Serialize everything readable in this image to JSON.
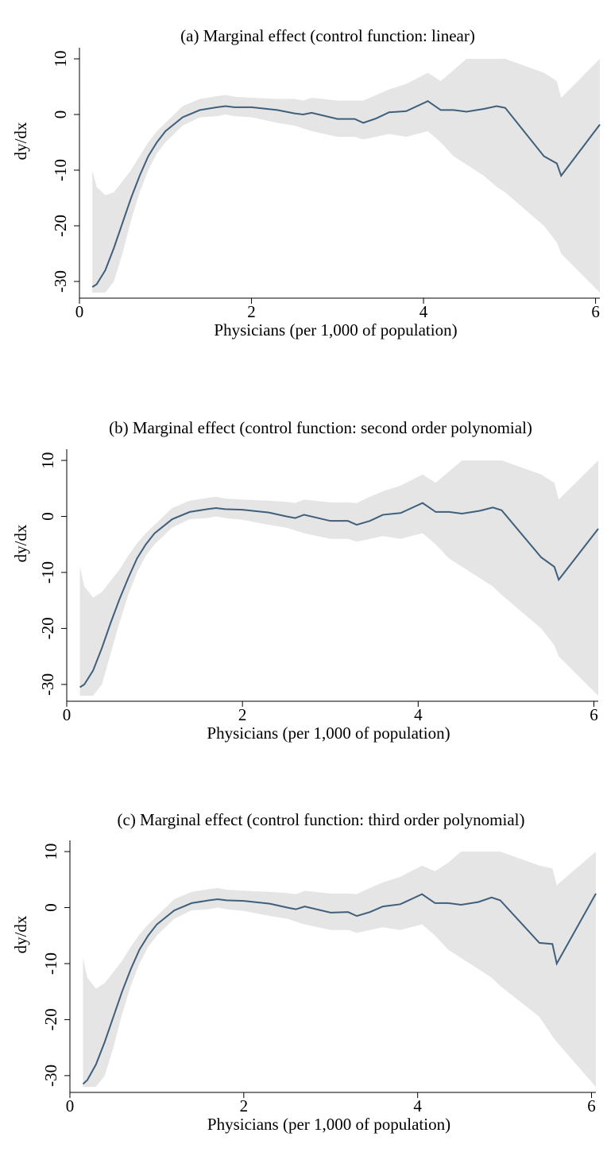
{
  "chart_data": [
    {
      "type": "line",
      "title": "(a) Marginal effect (control function: linear)",
      "xlabel": "Physicians (per 1,000 of population)",
      "ylabel": "dy/dx",
      "xlim": [
        0,
        6.05
      ],
      "xticks": [
        0,
        2,
        4,
        6
      ],
      "ylim": [
        -33,
        12
      ],
      "yticks": [
        -30,
        -20,
        -10,
        0,
        10
      ],
      "band_color": "#e5e5e5",
      "color": "#3f5f7a",
      "x": [
        0.15,
        0.2,
        0.3,
        0.4,
        0.5,
        0.6,
        0.7,
        0.8,
        0.9,
        1.0,
        1.2,
        1.4,
        1.6,
        1.7,
        1.8,
        2.0,
        2.3,
        2.5,
        2.6,
        2.7,
        3.0,
        3.2,
        3.3,
        3.45,
        3.6,
        3.8,
        4.05,
        4.2,
        4.35,
        4.5,
        4.7,
        4.85,
        4.95,
        5.4,
        5.55,
        5.6,
        6.05
      ],
      "values": [
        -31,
        -30.5,
        -28,
        -24,
        -19.5,
        -15,
        -11,
        -7.5,
        -5,
        -3,
        -0.5,
        0.8,
        1.3,
        1.5,
        1.3,
        1.3,
        0.8,
        0.2,
        0,
        0.3,
        -0.8,
        -0.8,
        -1.5,
        -0.7,
        0.4,
        0.6,
        2.4,
        0.8,
        0.8,
        0.5,
        1,
        1.5,
        1.2,
        -7.5,
        -8.8,
        -11,
        -1.8
      ],
      "lower": [
        -32,
        -32,
        -32,
        -30,
        -25,
        -19,
        -14,
        -10,
        -7,
        -5,
        -2,
        -0.5,
        -0.3,
        0,
        -0.3,
        -0.5,
        -1.5,
        -2,
        -2.5,
        -3,
        -4,
        -4,
        -4.5,
        -4,
        -3.5,
        -4,
        -3,
        -5,
        -7.5,
        -9,
        -11,
        -13,
        -14,
        -20,
        -23,
        -25,
        -32
      ],
      "upper": [
        -10,
        -13,
        -14.5,
        -14,
        -12,
        -10,
        -7.5,
        -5,
        -3,
        -1.5,
        1.5,
        2.8,
        3.3,
        3.5,
        3.2,
        3,
        2.8,
        2.8,
        2.5,
        3,
        2.5,
        2.5,
        2.5,
        3.5,
        4.5,
        5.5,
        7.5,
        6,
        8,
        10,
        10,
        10,
        10,
        7.5,
        6,
        3,
        10
      ]
    },
    {
      "type": "line",
      "title": "(b) Marginal effect (control function: second order polynomial)",
      "xlabel": "Physicians (per 1,000 of population)",
      "ylabel": "dy/dx",
      "xlim": [
        0,
        6.05
      ],
      "xticks": [
        0,
        2,
        4,
        6
      ],
      "ylim": [
        -33,
        12
      ],
      "yticks": [
        -30,
        -20,
        -10,
        0,
        10
      ],
      "band_color": "#e5e5e5",
      "color": "#3f5f7a",
      "x": [
        0.15,
        0.2,
        0.3,
        0.4,
        0.5,
        0.6,
        0.7,
        0.8,
        0.9,
        1.0,
        1.2,
        1.4,
        1.6,
        1.7,
        1.8,
        2.0,
        2.3,
        2.5,
        2.6,
        2.7,
        3.0,
        3.2,
        3.3,
        3.45,
        3.6,
        3.8,
        4.05,
        4.2,
        4.35,
        4.5,
        4.7,
        4.85,
        4.95,
        5.4,
        5.55,
        5.6,
        6.05
      ],
      "values": [
        -30.5,
        -30,
        -27.5,
        -23.5,
        -19,
        -14.8,
        -11,
        -7.5,
        -5,
        -3,
        -0.5,
        0.8,
        1.3,
        1.5,
        1.3,
        1.2,
        0.7,
        0,
        -0.3,
        0.3,
        -0.8,
        -0.8,
        -1.5,
        -0.8,
        0.3,
        0.6,
        2.4,
        0.8,
        0.8,
        0.5,
        1,
        1.6,
        1.1,
        -7.3,
        -9,
        -11.3,
        -2.2
      ],
      "lower": [
        -32,
        -32,
        -32,
        -30,
        -24.5,
        -19,
        -14,
        -10,
        -7,
        -5,
        -2,
        -0.5,
        -0.3,
        0,
        -0.3,
        -0.6,
        -1.5,
        -2,
        -2.5,
        -3,
        -4,
        -4,
        -4.5,
        -4,
        -3.5,
        -4,
        -3,
        -5,
        -7.5,
        -9,
        -11,
        -12.5,
        -14,
        -20,
        -23,
        -25,
        -32
      ],
      "upper": [
        -9,
        -12.5,
        -14.5,
        -13.5,
        -11.5,
        -9.5,
        -7,
        -4.8,
        -3,
        -1.5,
        1.5,
        2.8,
        3.3,
        3.5,
        3.2,
        3,
        2.8,
        2.6,
        2.4,
        3,
        2.5,
        2.5,
        2.4,
        3.5,
        4.5,
        5.5,
        7.5,
        6,
        8,
        10,
        10,
        10,
        10,
        7.5,
        6,
        3,
        10
      ]
    },
    {
      "type": "line",
      "title": "(c) Marginal effect (control function: third order polynomial)",
      "xlabel": "Physicians (per 1,000 of population)",
      "ylabel": "dy/dx",
      "xlim": [
        0,
        6.05
      ],
      "xticks": [
        0,
        2,
        4,
        6
      ],
      "ylim": [
        -33,
        12
      ],
      "yticks": [
        -30,
        -20,
        -10,
        0,
        10
      ],
      "band_color": "#e5e5e5",
      "color": "#3f5f7a",
      "x": [
        0.15,
        0.2,
        0.3,
        0.4,
        0.5,
        0.6,
        0.7,
        0.8,
        0.9,
        1.0,
        1.2,
        1.4,
        1.6,
        1.7,
        1.8,
        2.0,
        2.3,
        2.5,
        2.6,
        2.7,
        3.0,
        3.2,
        3.3,
        3.45,
        3.6,
        3.8,
        4.05,
        4.2,
        4.35,
        4.5,
        4.7,
        4.85,
        4.95,
        5.4,
        5.55,
        5.6,
        6.05
      ],
      "values": [
        -31.5,
        -30.8,
        -28,
        -24,
        -19.5,
        -15,
        -11,
        -7.5,
        -5,
        -3,
        -0.5,
        0.8,
        1.3,
        1.5,
        1.3,
        1.2,
        0.7,
        0,
        -0.3,
        0.2,
        -0.9,
        -0.8,
        -1.5,
        -0.8,
        0.2,
        0.6,
        2.4,
        0.8,
        0.8,
        0.5,
        1,
        1.8,
        1.3,
        -6.3,
        -6.5,
        -10,
        2.5
      ],
      "lower": [
        -32,
        -32,
        -32,
        -30,
        -25,
        -19,
        -14,
        -10,
        -7,
        -5,
        -2,
        -0.5,
        -0.3,
        0,
        -0.3,
        -0.6,
        -1.5,
        -2,
        -2.5,
        -3,
        -4,
        -4,
        -4.5,
        -4,
        -3.5,
        -4,
        -3,
        -5,
        -7.5,
        -9,
        -11,
        -12.5,
        -14,
        -19.5,
        -23,
        -24,
        -32
      ],
      "upper": [
        -9,
        -12.5,
        -14.5,
        -13.5,
        -11.5,
        -9.5,
        -7,
        -4.8,
        -3,
        -1.5,
        1.5,
        2.8,
        3.3,
        3.5,
        3.2,
        3,
        2.8,
        2.6,
        2.4,
        3,
        2.5,
        2.5,
        2.4,
        3.5,
        4.5,
        5.5,
        7.5,
        6.5,
        8,
        10,
        10,
        10,
        10,
        7.5,
        7,
        4,
        10
      ]
    }
  ]
}
